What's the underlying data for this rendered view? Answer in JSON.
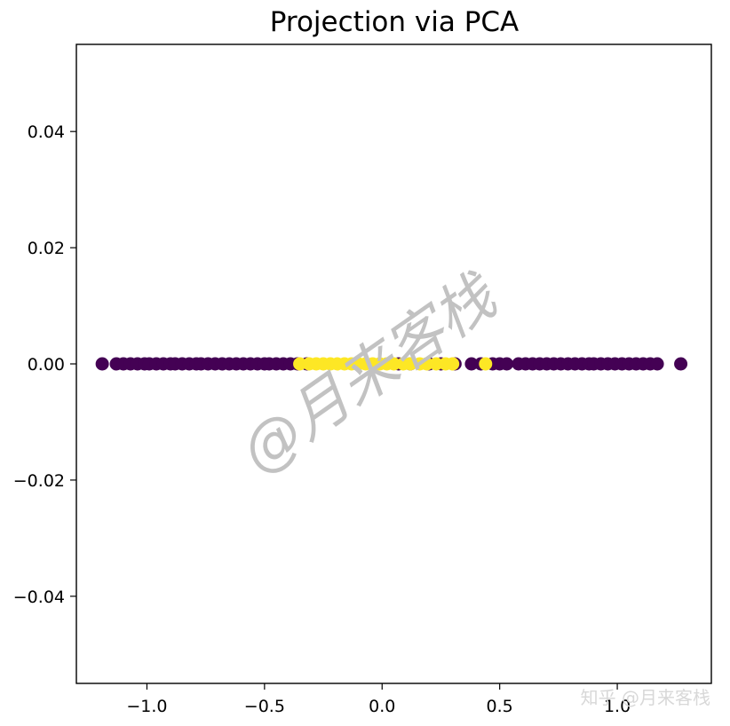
{
  "chart_data": {
    "type": "scatter",
    "title": "Projection via PCA",
    "xlabel": "",
    "ylabel": "",
    "xlim": [
      -1.3,
      1.4
    ],
    "ylim": [
      -0.055,
      0.055
    ],
    "x_ticks": [
      {
        "value": -1.0,
        "label": "−1.0"
      },
      {
        "value": -0.5,
        "label": "−0.5"
      },
      {
        "value": 0.0,
        "label": "0.0"
      },
      {
        "value": 0.5,
        "label": "0.5"
      },
      {
        "value": 1.0,
        "label": "1.0"
      }
    ],
    "y_ticks": [
      {
        "value": 0.04,
        "label": "0.04"
      },
      {
        "value": 0.02,
        "label": "0.02"
      },
      {
        "value": 0.0,
        "label": "0.00"
      },
      {
        "value": -0.02,
        "label": "−0.02"
      },
      {
        "value": -0.04,
        "label": "−0.04"
      }
    ],
    "grid": false,
    "series": [
      {
        "color": "#440154",
        "x": [
          -1.19,
          -1.13,
          -1.1,
          -1.07,
          -1.04,
          -1.01,
          -0.99,
          -0.96,
          -0.93,
          -0.9,
          -0.88,
          -0.85,
          -0.82,
          -0.79,
          -0.77,
          -0.74,
          -0.71,
          -0.68,
          -0.65,
          -0.62,
          -0.59,
          -0.56,
          -0.53,
          -0.5,
          -0.48,
          -0.45,
          -0.42,
          -0.39,
          -0.36,
          -0.32,
          0.07,
          0.12,
          0.2,
          0.25,
          0.31,
          0.38,
          0.42,
          0.47,
          0.5,
          0.53,
          0.58,
          0.61,
          0.64,
          0.67,
          0.7,
          0.73,
          0.76,
          0.79,
          0.82,
          0.85,
          0.88,
          0.9,
          0.93,
          0.96,
          0.99,
          1.02,
          1.05,
          1.08,
          1.11,
          1.14,
          1.17,
          1.27
        ],
        "y": [
          0,
          0,
          0,
          0,
          0,
          0,
          0,
          0,
          0,
          0,
          0,
          0,
          0,
          0,
          0,
          0,
          0,
          0,
          0,
          0,
          0,
          0,
          0,
          0,
          0,
          0,
          0,
          0,
          0,
          0,
          0,
          0,
          0,
          0,
          0,
          0,
          0,
          0,
          0,
          0,
          0,
          0,
          0,
          0,
          0,
          0,
          0,
          0,
          0,
          0,
          0,
          0,
          0,
          0,
          0,
          0,
          0,
          0,
          0,
          0,
          0,
          0
        ]
      },
      {
        "color": "#fde725",
        "x": [
          -0.35,
          -0.31,
          -0.28,
          -0.25,
          -0.22,
          -0.19,
          -0.16,
          -0.13,
          -0.1,
          -0.07,
          -0.04,
          -0.01,
          0.02,
          0.05,
          0.09,
          0.12,
          0.16,
          0.19,
          0.23,
          0.27,
          0.3,
          0.44
        ],
        "y": [
          0,
          0,
          0,
          0,
          0,
          0,
          0,
          0,
          0,
          0,
          0,
          0,
          0,
          0,
          0,
          0,
          0,
          0,
          0,
          0,
          0,
          0
        ]
      }
    ]
  },
  "watermark": {
    "main_text": "@月来客栈",
    "corner_text": "知乎 @月来客栈"
  }
}
